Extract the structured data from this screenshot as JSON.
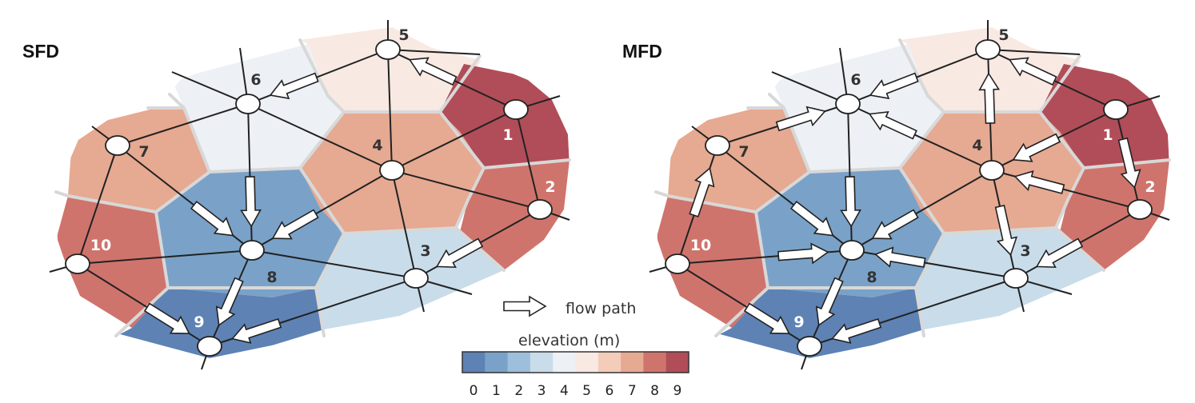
{
  "panels": [
    {
      "title": "SFD",
      "nodes": [
        {
          "id": "1",
          "label": "1",
          "elevation": 9
        },
        {
          "id": "2",
          "label": "2",
          "elevation": 8
        },
        {
          "id": "3",
          "label": "3",
          "elevation": 3
        },
        {
          "id": "4",
          "label": "4",
          "elevation": 7
        },
        {
          "id": "5",
          "label": "5",
          "elevation": 5
        },
        {
          "id": "6",
          "label": "6",
          "elevation": 4
        },
        {
          "id": "7",
          "label": "7",
          "elevation": 7
        },
        {
          "id": "8",
          "label": "8",
          "elevation": 1
        },
        {
          "id": "9",
          "label": "9",
          "elevation": 0
        },
        {
          "id": "10",
          "label": "10",
          "elevation": 8
        }
      ],
      "flow_paths": [
        [
          "5",
          "6"
        ],
        [
          "1",
          "5"
        ],
        [
          "6",
          "8"
        ],
        [
          "7",
          "8"
        ],
        [
          "4",
          "8"
        ],
        [
          "2",
          "3"
        ],
        [
          "10",
          "9"
        ],
        [
          "8",
          "9"
        ],
        [
          "3",
          "9"
        ]
      ]
    },
    {
      "title": "MFD",
      "nodes": [
        {
          "id": "1",
          "label": "1",
          "elevation": 9
        },
        {
          "id": "2",
          "label": "2",
          "elevation": 8
        },
        {
          "id": "3",
          "label": "3",
          "elevation": 3
        },
        {
          "id": "4",
          "label": "4",
          "elevation": 7
        },
        {
          "id": "5",
          "label": "5",
          "elevation": 5
        },
        {
          "id": "6",
          "label": "6",
          "elevation": 4
        },
        {
          "id": "7",
          "label": "7",
          "elevation": 7
        },
        {
          "id": "8",
          "label": "8",
          "elevation": 1
        },
        {
          "id": "9",
          "label": "9",
          "elevation": 0
        },
        {
          "id": "10",
          "label": "10",
          "elevation": 8
        }
      ],
      "flow_paths": [
        [
          "5",
          "6"
        ],
        [
          "1",
          "5"
        ],
        [
          "4",
          "5"
        ],
        [
          "4",
          "6"
        ],
        [
          "7",
          "6"
        ],
        [
          "1",
          "4"
        ],
        [
          "1",
          "2"
        ],
        [
          "6",
          "8"
        ],
        [
          "7",
          "8"
        ],
        [
          "4",
          "8"
        ],
        [
          "2",
          "4"
        ],
        [
          "4",
          "3"
        ],
        [
          "2",
          "3"
        ],
        [
          "3",
          "8"
        ],
        [
          "10",
          "7"
        ],
        [
          "10",
          "8"
        ],
        [
          "10",
          "9"
        ],
        [
          "8",
          "9"
        ],
        [
          "3",
          "9"
        ]
      ]
    }
  ],
  "legend": {
    "flow_label": "flow path",
    "elevation_title": "elevation (m)",
    "ticks": [
      "0",
      "1",
      "2",
      "3",
      "4",
      "5",
      "6",
      "7",
      "8",
      "9"
    ],
    "colors": [
      "#5e82b4",
      "#7aa2c8",
      "#9dbfdb",
      "#c9dcea",
      "#edf1f6",
      "#f8e9e3",
      "#f3cdb9",
      "#e6a991",
      "#cf746c",
      "#b14d58"
    ]
  }
}
